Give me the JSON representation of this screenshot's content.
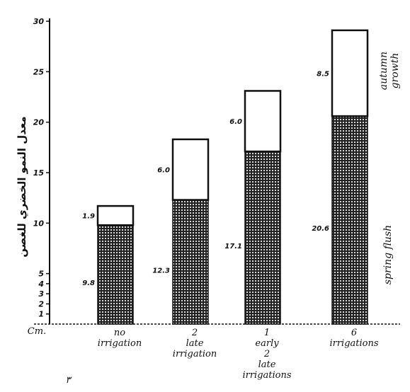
{
  "chart_data": {
    "type": "bar",
    "stacked": true,
    "ylabel": "معدل النمو الخضري للغصن",
    "x_axis_label": "Cm.",
    "corner_mark": "٣",
    "ylim": [
      0,
      30
    ],
    "yticks": [
      1,
      2,
      3,
      4,
      5,
      10,
      15,
      20,
      25,
      30
    ],
    "categories": [
      [
        "no",
        "irrigation"
      ],
      [
        "2",
        "late",
        "irrigation"
      ],
      [
        "1",
        "early",
        "2",
        "late",
        "irrigations"
      ],
      [
        "6",
        "irrigations"
      ]
    ],
    "series": [
      {
        "name": "spring flush",
        "values": [
          9.8,
          12.3,
          17.1,
          20.6
        ],
        "labels": [
          "9.8",
          "12.3",
          "17.1",
          "20.6"
        ],
        "fill": "hatched"
      },
      {
        "name": "autumn growth",
        "values": [
          1.9,
          6.0,
          6.0,
          8.5
        ],
        "labels": [
          "1.9",
          "6.0",
          "6.0",
          "8.5"
        ],
        "fill": "white"
      }
    ],
    "side_labels": {
      "top": [
        "autumn",
        "growth"
      ],
      "bottom": [
        "spring flush"
      ]
    },
    "colors": {
      "ink": "#111111",
      "paper": "#ffffff"
    },
    "grid": false,
    "legend": "none"
  }
}
